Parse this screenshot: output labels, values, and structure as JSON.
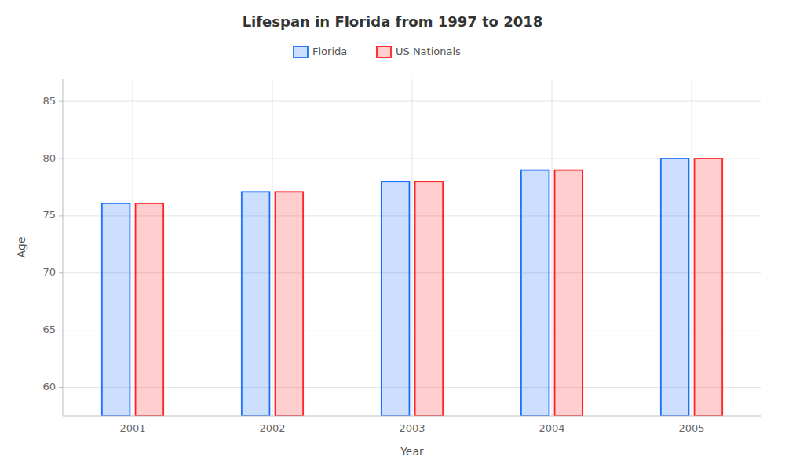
{
  "chart_data": {
    "type": "bar",
    "title": "Lifespan in Florida from 1997 to 2018",
    "xlabel": "Year",
    "ylabel": "Age",
    "categories": [
      "2001",
      "2002",
      "2003",
      "2004",
      "2005"
    ],
    "series": [
      {
        "name": "Florida",
        "color": "#1a6fff",
        "values": [
          76.1,
          77.1,
          78.0,
          79.0,
          80.0
        ]
      },
      {
        "name": "US Nationals",
        "color": "#ff2222",
        "values": [
          76.1,
          77.1,
          78.0,
          79.0,
          80.0
        ]
      }
    ],
    "ylim": [
      57.5,
      87
    ],
    "yticks": [
      60,
      65,
      70,
      75,
      80,
      85
    ],
    "grid": true,
    "legend": "top"
  }
}
